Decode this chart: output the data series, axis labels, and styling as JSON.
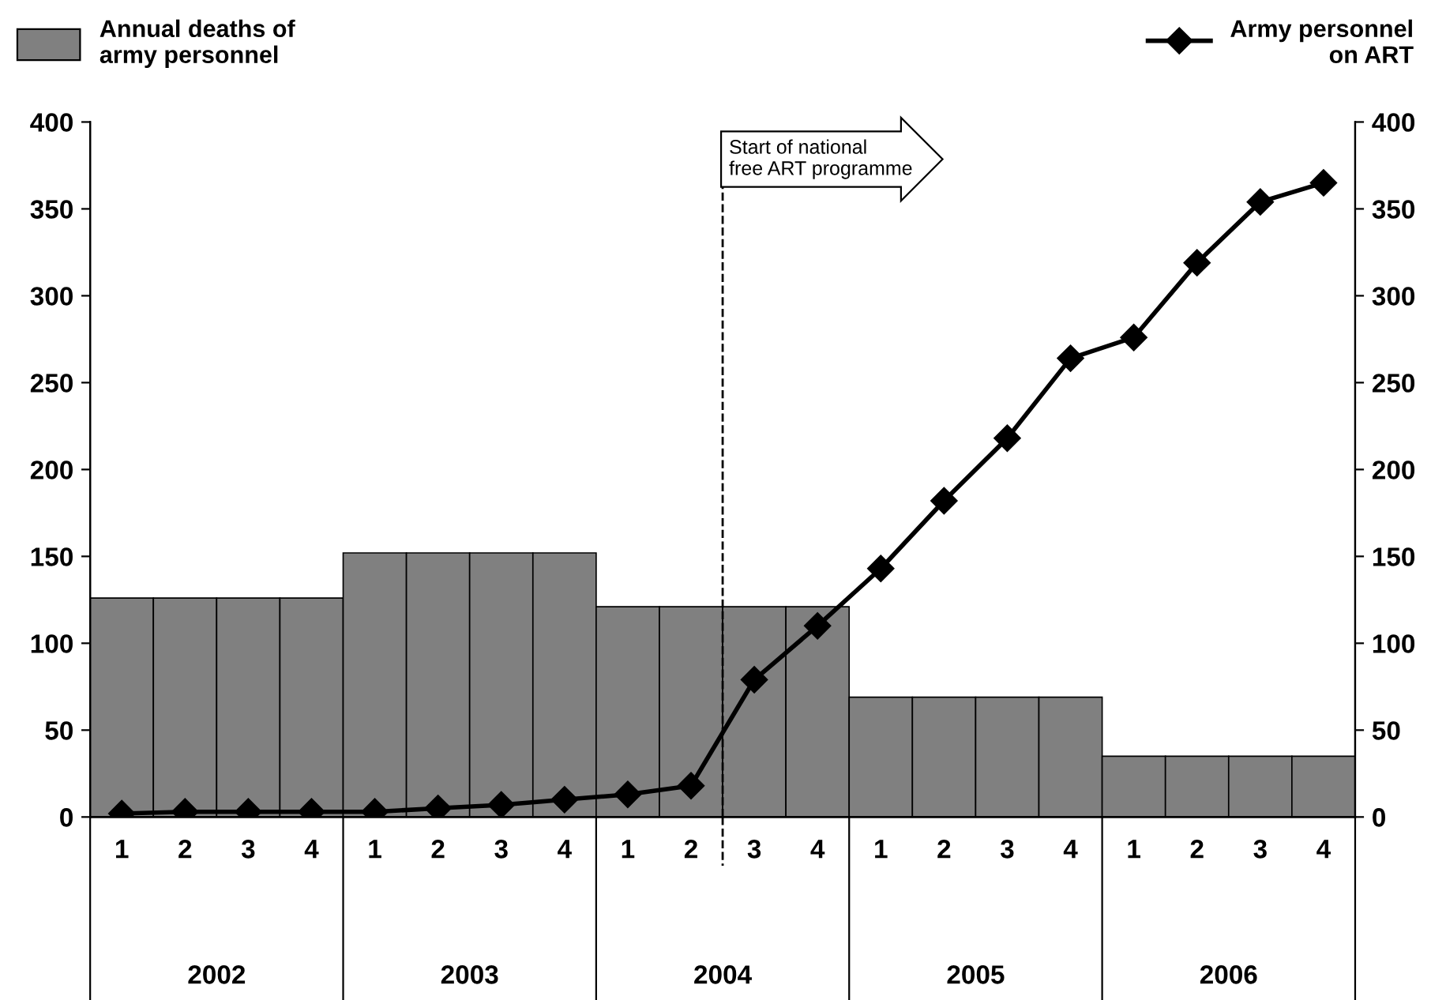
{
  "chart_data": {
    "type": "bar",
    "categories": [
      "1",
      "2",
      "3",
      "4",
      "1",
      "2",
      "3",
      "4",
      "1",
      "2",
      "3",
      "4",
      "1",
      "2",
      "3",
      "4",
      "1",
      "2",
      "3",
      "4"
    ],
    "series": [
      {
        "name": "Annual deaths of army personnel",
        "color": "#808080",
        "values": [
          126,
          126,
          126,
          126,
          152,
          152,
          152,
          152,
          121,
          121,
          121,
          121,
          69,
          69,
          69,
          69,
          35,
          35,
          35,
          35
        ]
      },
      {
        "name": "Army personnel on ART",
        "type": "line",
        "axis": "y2",
        "color": "#000000",
        "marker": "diamond",
        "line_style": "solid",
        "values": [
          2,
          3,
          3,
          3,
          3,
          5,
          7,
          10,
          13,
          18,
          79,
          110,
          143,
          182,
          218,
          264,
          276,
          319,
          354,
          365
        ]
      }
    ],
    "ylim": [
      0,
      400
    ],
    "yticks": [
      0,
      50,
      100,
      150,
      200,
      250,
      300,
      350,
      400
    ],
    "y2lim": [
      0,
      400
    ],
    "y2ticks": [
      0,
      50,
      100,
      150,
      200,
      250,
      300,
      350,
      400
    ],
    "annotations": [
      "2002",
      "2003",
      "2004",
      "2005",
      "2006",
      "Start of national\nfree ART programme"
    ],
    "legend": "top",
    "grid": false
  }
}
